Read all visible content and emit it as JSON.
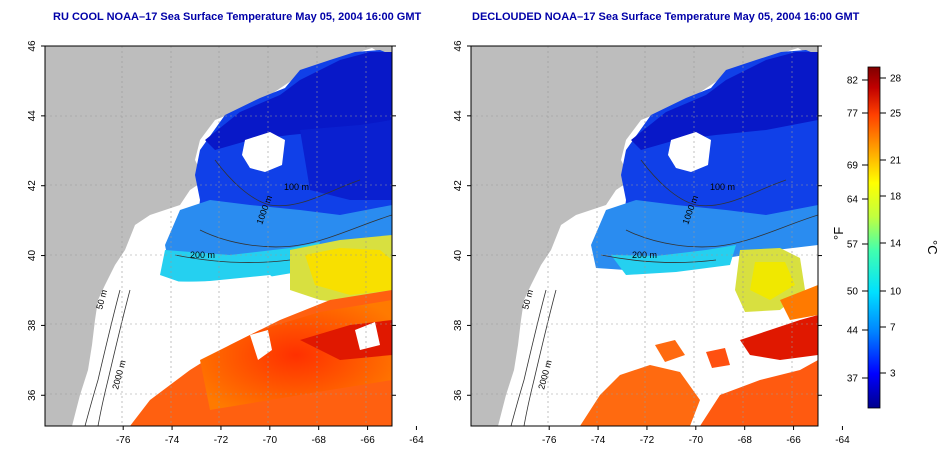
{
  "panels": [
    {
      "title": "RU COOL NOAA–17 Sea Surface Temperature May 05, 2004 16:00 GMT",
      "kind": "raw",
      "contour_labels": [
        "50 m",
        "100 m",
        "200 m",
        "1000 m",
        "2000 m"
      ]
    },
    {
      "title": "DECLOUDED NOAA–17 Sea Surface Temperature May 05, 2004 16:00 GMT",
      "kind": "declouded",
      "contour_labels": [
        "50 m",
        "100 m",
        "200 m",
        "1000 m",
        "2000 m"
      ]
    }
  ],
  "axes": {
    "x_ticks": [
      "-76",
      "-74",
      "-72",
      "-70",
      "-68",
      "-66",
      "-64"
    ],
    "y_ticks": [
      "36",
      "38",
      "40",
      "42",
      "44",
      "46"
    ]
  },
  "colorbar": {
    "f_unit": "°F",
    "c_unit": "°C",
    "f_ticks": [
      "82",
      "77",
      "69",
      "64",
      "57",
      "50",
      "44",
      "37"
    ],
    "c_ticks": [
      "28",
      "25",
      "21",
      "18",
      "14",
      "10",
      "7",
      "3"
    ],
    "colors": [
      "#00008c",
      "#0000ff",
      "#0080ff",
      "#00e0ff",
      "#40ffb0",
      "#c0ff40",
      "#ffff00",
      "#ffa000",
      "#ff4000",
      "#c00000",
      "#800000"
    ]
  }
}
